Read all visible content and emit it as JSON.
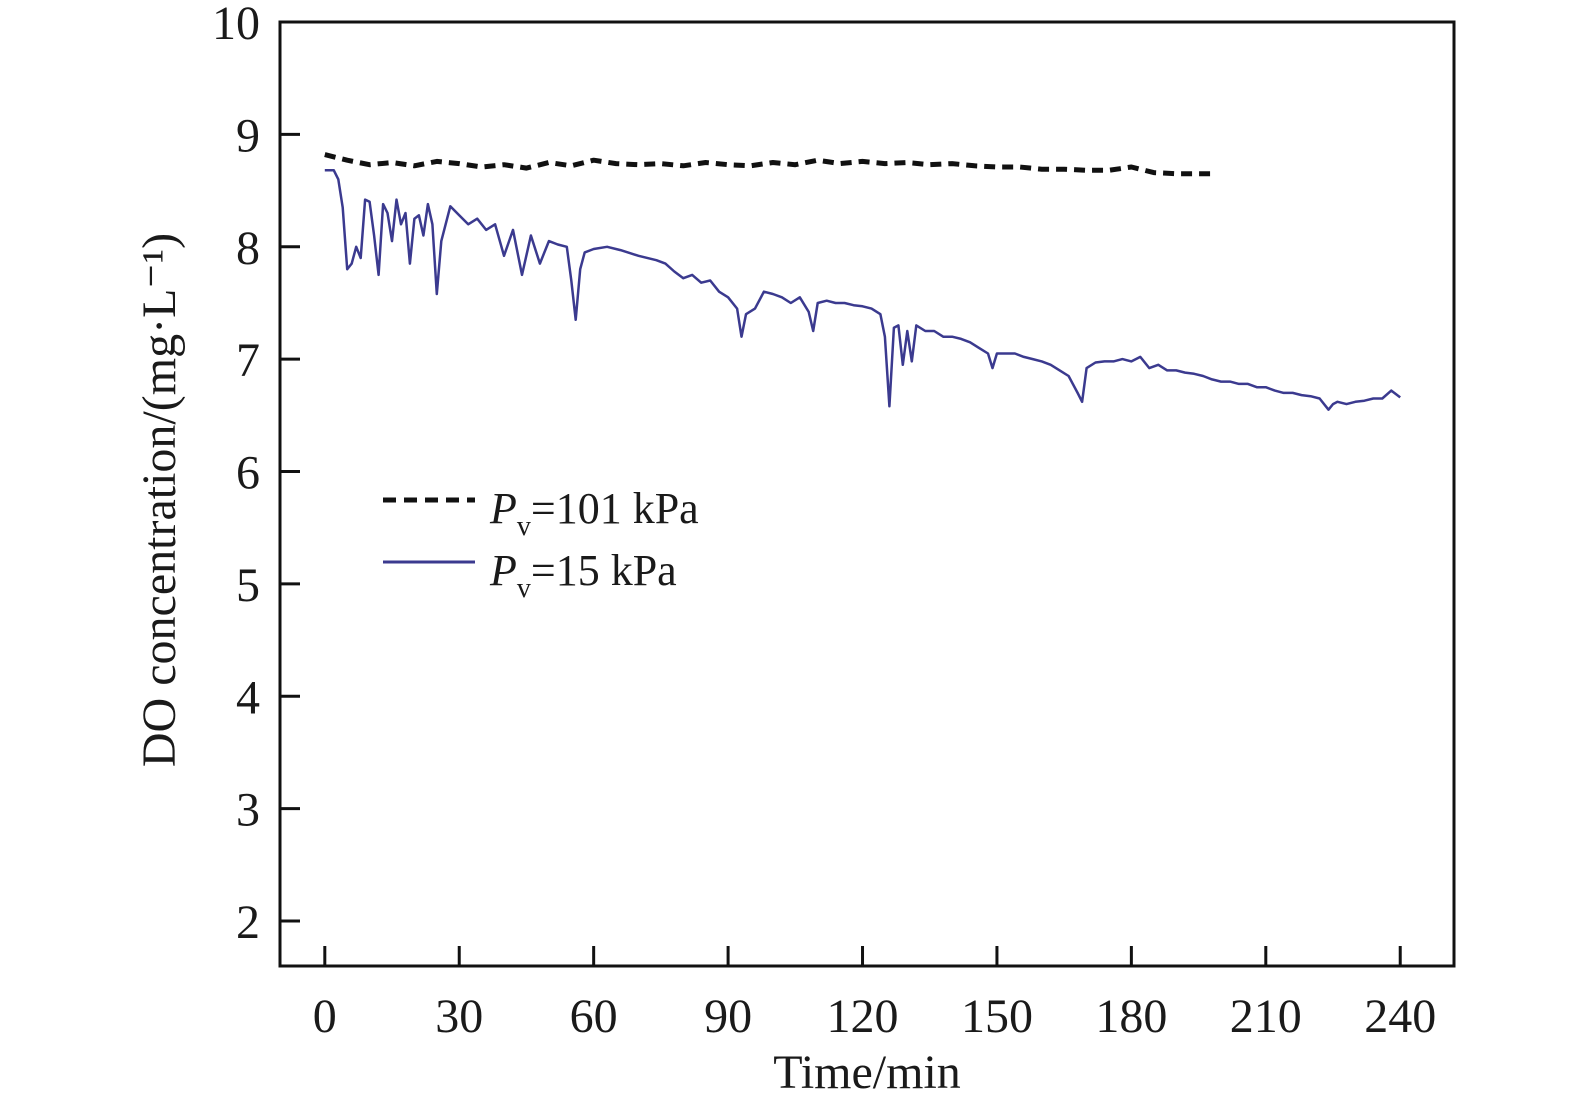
{
  "chart_data": {
    "type": "line",
    "xlabel": "Time/min",
    "ylabel": "DO concentration/(mg·L⁻¹)",
    "xlim": [
      -10,
      252
    ],
    "ylim": [
      1.6,
      10
    ],
    "x_ticks": [
      0,
      30,
      60,
      90,
      120,
      150,
      180,
      210,
      240
    ],
    "y_ticks": [
      2,
      3,
      4,
      5,
      6,
      7,
      8,
      9,
      10
    ],
    "grid": false,
    "legend_position": "center-left",
    "series": [
      {
        "name": "Pv=101 kPa",
        "legend": {
          "symbol": "P",
          "subscript": "v",
          "rest": "=101 kPa"
        },
        "color": "#111111",
        "style": "dashed",
        "x": [
          0,
          5,
          10,
          15,
          20,
          25,
          30,
          35,
          40,
          45,
          50,
          55,
          60,
          65,
          70,
          75,
          80,
          85,
          90,
          95,
          100,
          105,
          110,
          115,
          120,
          125,
          130,
          135,
          140,
          145,
          150,
          155,
          160,
          165,
          170,
          175,
          180,
          185,
          190,
          195,
          198
        ],
        "y": [
          8.82,
          8.77,
          8.73,
          8.75,
          8.72,
          8.76,
          8.74,
          8.71,
          8.73,
          8.7,
          8.75,
          8.72,
          8.77,
          8.74,
          8.73,
          8.74,
          8.72,
          8.75,
          8.73,
          8.72,
          8.75,
          8.73,
          8.77,
          8.74,
          8.76,
          8.74,
          8.75,
          8.73,
          8.74,
          8.72,
          8.71,
          8.71,
          8.69,
          8.69,
          8.68,
          8.68,
          8.71,
          8.66,
          8.65,
          8.65,
          8.65
        ]
      },
      {
        "name": "Pv=15 kPa",
        "legend": {
          "symbol": "P",
          "subscript": "v",
          "rest": "=15 kPa"
        },
        "color": "#3b3a8f",
        "style": "solid",
        "x": [
          0,
          2,
          3,
          4,
          5,
          6,
          7,
          8,
          9,
          10,
          11,
          12,
          13,
          14,
          15,
          16,
          17,
          18,
          19,
          20,
          21,
          22,
          23,
          24,
          25,
          26,
          28,
          30,
          32,
          34,
          36,
          38,
          40,
          42,
          44,
          46,
          48,
          50,
          52,
          54,
          55,
          56,
          57,
          58,
          60,
          63,
          66,
          70,
          74,
          76,
          78,
          80,
          82,
          84,
          86,
          88,
          90,
          92,
          93,
          94,
          96,
          98,
          100,
          102,
          104,
          106,
          108,
          109,
          110,
          112,
          114,
          116,
          118,
          120,
          122,
          124,
          125,
          126,
          127,
          128,
          129,
          130,
          131,
          132,
          134,
          136,
          138,
          140,
          142,
          144,
          146,
          148,
          149,
          150,
          152,
          154,
          156,
          158,
          160,
          162,
          164,
          166,
          168,
          169,
          170,
          172,
          174,
          176,
          178,
          180,
          182,
          184,
          186,
          188,
          190,
          192,
          194,
          196,
          198,
          200,
          202,
          204,
          206,
          208,
          210,
          212,
          214,
          216,
          218,
          220,
          222,
          224,
          225,
          226,
          228,
          230,
          232,
          234,
          236,
          238,
          240
        ],
        "y": [
          8.68,
          8.68,
          8.6,
          8.35,
          7.8,
          7.85,
          8.0,
          7.9,
          8.42,
          8.4,
          8.1,
          7.75,
          8.38,
          8.3,
          8.05,
          8.42,
          8.2,
          8.3,
          7.85,
          8.25,
          8.28,
          8.1,
          8.38,
          8.2,
          7.58,
          8.05,
          8.36,
          8.28,
          8.2,
          8.25,
          8.15,
          8.2,
          7.92,
          8.15,
          7.75,
          8.1,
          7.85,
          8.05,
          8.02,
          8.0,
          7.7,
          7.35,
          7.8,
          7.95,
          7.98,
          8.0,
          7.97,
          7.92,
          7.88,
          7.85,
          7.78,
          7.72,
          7.75,
          7.68,
          7.7,
          7.6,
          7.55,
          7.45,
          7.2,
          7.4,
          7.45,
          7.6,
          7.58,
          7.55,
          7.5,
          7.55,
          7.42,
          7.25,
          7.5,
          7.52,
          7.5,
          7.5,
          7.48,
          7.47,
          7.45,
          7.4,
          7.2,
          6.58,
          7.28,
          7.3,
          6.95,
          7.25,
          6.98,
          7.3,
          7.25,
          7.25,
          7.2,
          7.2,
          7.18,
          7.15,
          7.1,
          7.05,
          6.92,
          7.05,
          7.05,
          7.05,
          7.02,
          7.0,
          6.98,
          6.95,
          6.9,
          6.85,
          6.7,
          6.62,
          6.92,
          6.97,
          6.98,
          6.98,
          7.0,
          6.98,
          7.02,
          6.92,
          6.95,
          6.9,
          6.9,
          6.88,
          6.87,
          6.85,
          6.82,
          6.8,
          6.8,
          6.78,
          6.78,
          6.75,
          6.75,
          6.72,
          6.7,
          6.7,
          6.68,
          6.67,
          6.65,
          6.55,
          6.6,
          6.62,
          6.6,
          6.62,
          6.63,
          6.65,
          6.65,
          6.72,
          6.66
        ]
      }
    ]
  }
}
